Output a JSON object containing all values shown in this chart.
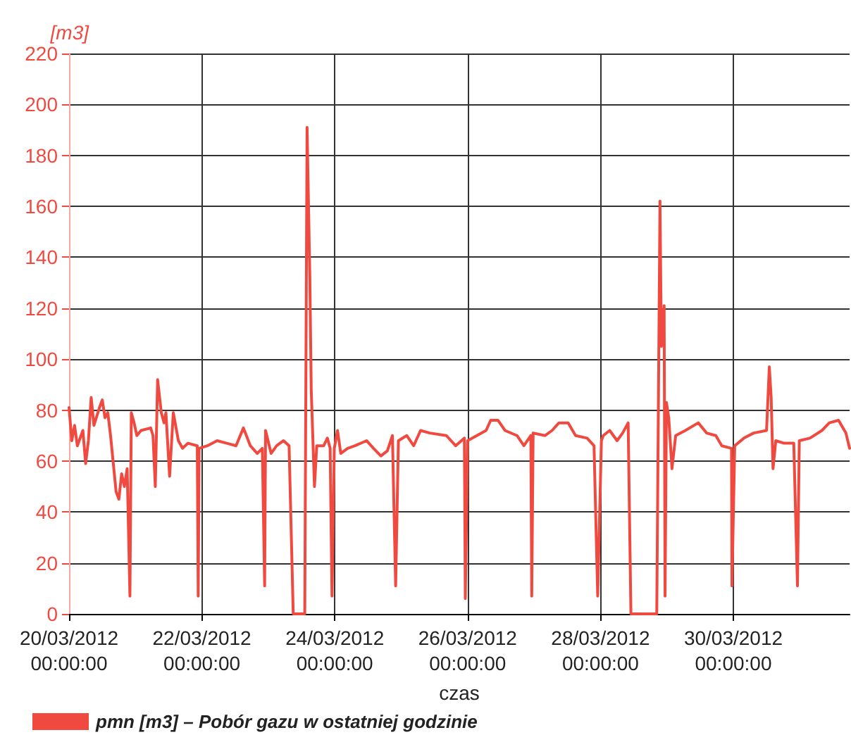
{
  "chart_data": {
    "type": "line",
    "ylabel": "[m3]",
    "xlabel": "czas",
    "legend": "bottom left",
    "grid": true,
    "marker": "none",
    "line_style": "solid",
    "xlim": [
      "2012-03-20T00:00",
      "2012-03-31T18:00"
    ],
    "xticks": [
      {
        "value": "2012-03-20",
        "label": "20/03/2012\n00:00:00"
      },
      {
        "value": "2012-03-22",
        "label": "22/03/2012\n00:00:00"
      },
      {
        "value": "2012-03-24",
        "label": "24/03/2012\n00:00:00"
      },
      {
        "value": "2012-03-26",
        "label": "26/03/2012\n00:00:00"
      },
      {
        "value": "2012-03-28",
        "label": "28/03/2012\n00:00:00"
      },
      {
        "value": "2012-03-30",
        "label": "30/03/2012\n00:00:00"
      }
    ],
    "ylim": [
      0,
      220
    ],
    "yticks": [
      0,
      20,
      40,
      60,
      80,
      100,
      120,
      140,
      160,
      180,
      200,
      220
    ],
    "x": [
      "2012-03-20T00:00",
      "2012-03-20T01:00",
      "2012-03-20T02:00",
      "2012-03-20T03:00",
      "2012-03-20T05:00",
      "2012-03-20T06:00",
      "2012-03-20T07:00",
      "2012-03-20T08:00",
      "2012-03-20T09:00",
      "2012-03-20T11:00",
      "2012-03-20T12:00",
      "2012-03-20T13:00",
      "2012-03-20T14:00",
      "2012-03-20T15:00",
      "2012-03-20T17:00",
      "2012-03-20T18:00",
      "2012-03-20T19:00",
      "2012-03-20T20:00",
      "2012-03-20T21:00",
      "2012-03-20T22:00",
      "2012-03-20T22:30",
      "2012-03-20T23:30",
      "2012-03-21T00:30",
      "2012-03-21T02:00",
      "2012-03-21T05:30",
      "2012-03-21T06:20",
      "2012-03-21T07:10",
      "2012-03-21T08:00",
      "2012-03-21T09:20",
      "2012-03-21T10:20",
      "2012-03-21T11:00",
      "2012-03-21T12:20",
      "2012-03-21T13:40",
      "2012-03-21T15:30",
      "2012-03-21T17:00",
      "2012-03-21T19:00",
      "2012-03-21T22:20",
      "2012-03-21T22:40",
      "2012-03-21T23:00",
      "2012-03-22T02:00",
      "2012-03-22T05:30",
      "2012-03-22T09:00",
      "2012-03-22T12:20",
      "2012-03-22T15:00",
      "2012-03-22T17:30",
      "2012-03-22T20:00",
      "2012-03-22T21:50",
      "2012-03-22T22:40",
      "2012-03-22T23:00",
      "2012-03-23T01:00",
      "2012-03-23T03:00",
      "2012-03-23T05:30",
      "2012-03-23T07:30",
      "2012-03-23T09:00",
      "2012-03-23T13:10",
      "2012-03-23T14:00",
      "2012-03-23T15:00",
      "2012-03-23T15:30",
      "2012-03-23T16:40",
      "2012-03-23T17:30",
      "2012-03-23T20:00",
      "2012-03-23T21:20",
      "2012-03-23T22:20",
      "2012-03-23T23:00",
      "2012-03-23T23:50",
      "2012-03-24T01:00",
      "2012-03-24T02:10",
      "2012-03-24T04:40",
      "2012-03-24T07:20",
      "2012-03-24T11:30",
      "2012-03-24T14:00",
      "2012-03-24T16:40",
      "2012-03-24T19:00",
      "2012-03-24T20:50",
      "2012-03-24T22:00",
      "2012-03-24T23:00",
      "2012-03-25T02:00",
      "2012-03-25T04:30",
      "2012-03-25T07:00",
      "2012-03-25T10:20",
      "2012-03-25T16:20",
      "2012-03-25T19:40",
      "2012-03-25T22:50",
      "2012-03-25T23:10",
      "2012-03-26T00:00",
      "2012-03-26T03:20",
      "2012-03-26T06:40",
      "2012-03-26T08:20",
      "2012-03-26T11:00",
      "2012-03-26T13:30",
      "2012-03-26T17:50",
      "2012-03-26T20:20",
      "2012-03-26T22:50",
      "2012-03-26T23:10",
      "2012-03-26T23:40",
      "2012-03-27T04:00",
      "2012-03-27T06:30",
      "2012-03-27T09:00",
      "2012-03-27T12:20",
      "2012-03-27T15:00",
      "2012-03-27T19:10",
      "2012-03-27T21:40",
      "2012-03-27T23:00",
      "2012-03-28T00:20",
      "2012-03-28T01:00",
      "2012-03-28T03:20",
      "2012-03-28T06:00",
      "2012-03-28T08:00",
      "2012-03-28T10:00",
      "2012-03-28T11:00",
      "2012-03-28T20:20",
      "2012-03-28T21:30",
      "2012-03-28T22:00",
      "2012-03-28T23:00",
      "2012-03-28T23:20",
      "2012-03-28T23:50",
      "2012-03-29T00:40",
      "2012-03-29T01:50",
      "2012-03-29T03:10",
      "2012-03-29T06:40",
      "2012-03-29T11:20",
      "2012-03-29T14:20",
      "2012-03-29T17:40",
      "2012-03-29T19:50",
      "2012-03-29T23:20",
      "2012-03-29T23:30",
      "2012-03-30T00:30",
      "2012-03-30T03:50",
      "2012-03-30T07:20",
      "2012-03-30T12:00",
      "2012-03-30T13:00",
      "2012-03-30T13:40",
      "2012-03-30T14:20",
      "2012-03-30T15:20",
      "2012-03-30T18:20",
      "2012-03-30T21:50",
      "2012-03-30T23:10",
      "2012-03-30T23:50",
      "2012-03-31T03:40",
      "2012-03-31T08:00",
      "2012-03-31T10:40",
      "2012-03-31T14:00",
      "2012-03-31T16:40",
      "2012-03-31T18:00"
    ],
    "series": [
      {
        "name": "pmn [m3] – Pobór gazu w ostatniej godzinie",
        "color": "#f04a40",
        "values": [
          81,
          68,
          74,
          66,
          72,
          59,
          68,
          85,
          74,
          81,
          84,
          77,
          79,
          70,
          48,
          45,
          55,
          50,
          57,
          7,
          79,
          75,
          70,
          72,
          73,
          70,
          50,
          92,
          79,
          75,
          79,
          54,
          79,
          68,
          65,
          67,
          66,
          7,
          65,
          66,
          68,
          67,
          66,
          73,
          66,
          63,
          65,
          11,
          72,
          63,
          66,
          68,
          66,
          0,
          0,
          191,
          132,
          88,
          50,
          66,
          66,
          69,
          65,
          7,
          65,
          72,
          63,
          65,
          66,
          68,
          65,
          62,
          64,
          70,
          11,
          68,
          70,
          66,
          72,
          71,
          70,
          66,
          69,
          6,
          68,
          70,
          72,
          76,
          76,
          72,
          70,
          66,
          70,
          7,
          71,
          70,
          72,
          75,
          75,
          70,
          69,
          66,
          7,
          68,
          70,
          72,
          68,
          71,
          75,
          0,
          0,
          162,
          105,
          121,
          7,
          83,
          77,
          57,
          70,
          72,
          75,
          71,
          70,
          66,
          65,
          11,
          66,
          69,
          71,
          72,
          97,
          85,
          57,
          68,
          67,
          67,
          11,
          68,
          69,
          72,
          75,
          76,
          71,
          65
        ]
      }
    ]
  }
}
